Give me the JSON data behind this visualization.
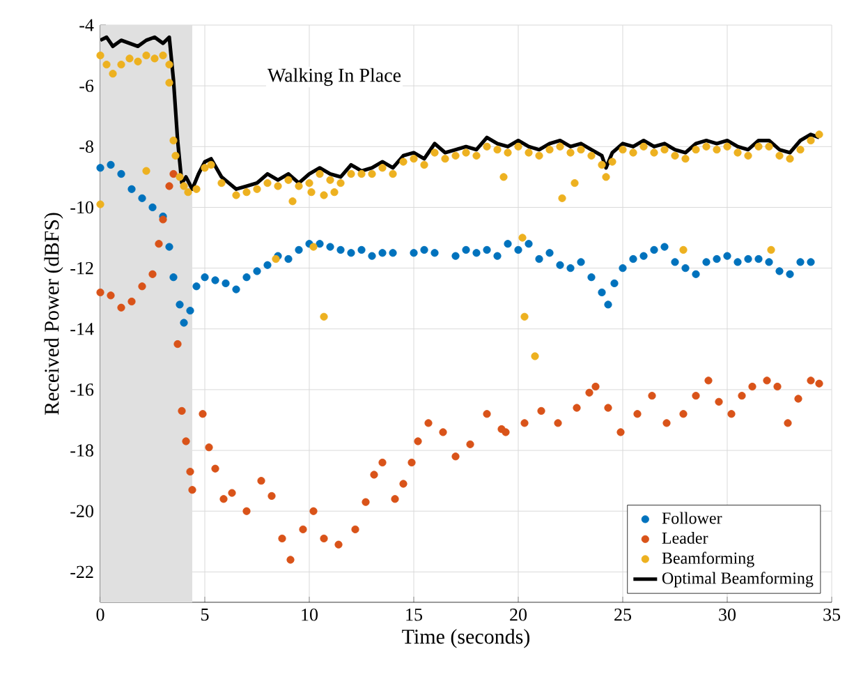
{
  "chart_data": {
    "type": "scatter",
    "xlabel": "Time (seconds)",
    "ylabel": "Received Power (dBFS)",
    "xlim": [
      0,
      35
    ],
    "ylim": [
      -23,
      -4
    ],
    "xticks": [
      0,
      5,
      10,
      15,
      20,
      25,
      30,
      35
    ],
    "yticks": [
      -22,
      -20,
      -18,
      -16,
      -14,
      -12,
      -10,
      -8,
      -6,
      -4
    ],
    "grid": true,
    "legend": "bottom right",
    "marker": "circle",
    "bands": [
      {
        "axis": "x",
        "from": 0,
        "to": 4.4,
        "color": "#e0e0e0"
      }
    ],
    "annotations": [
      "Walking In Place"
    ],
    "series": [
      {
        "name": "Follower",
        "color": "#0072bd",
        "x": [
          0,
          0.5,
          1,
          1.5,
          2,
          2.5,
          3,
          3.3,
          3.5,
          3.8,
          4.0,
          4.3,
          4.6,
          5,
          5.5,
          6,
          6.5,
          7,
          7.5,
          8,
          8.5,
          9,
          9.5,
          10,
          10.5,
          11,
          11.5,
          12,
          12.5,
          13,
          13.5,
          14,
          15,
          15.5,
          16,
          17,
          17.5,
          18,
          18.5,
          19,
          19.5,
          20,
          20.5,
          21,
          21.5,
          22,
          22.5,
          23,
          23.5,
          24,
          24.3,
          24.6,
          25,
          25.5,
          26,
          26.5,
          27,
          27.5,
          28,
          28.5,
          29,
          29.5,
          30,
          30.5,
          31,
          31.5,
          32,
          32.5,
          33,
          33.5,
          34
        ],
        "values": [
          -8.7,
          -8.6,
          -8.9,
          -9.4,
          -9.7,
          -10.0,
          -10.3,
          -11.3,
          -12.3,
          -13.2,
          -13.8,
          -13.4,
          -12.6,
          -12.3,
          -12.4,
          -12.5,
          -12.7,
          -12.3,
          -12.1,
          -11.9,
          -11.6,
          -11.7,
          -11.4,
          -11.2,
          -11.2,
          -11.3,
          -11.4,
          -11.5,
          -11.4,
          -11.6,
          -11.5,
          -11.5,
          -11.5,
          -11.4,
          -11.5,
          -11.6,
          -11.4,
          -11.5,
          -11.4,
          -11.6,
          -11.2,
          -11.4,
          -11.2,
          -11.7,
          -11.5,
          -11.9,
          -12.0,
          -11.8,
          -12.3,
          -12.8,
          -13.2,
          -12.5,
          -12.0,
          -11.7,
          -11.6,
          -11.4,
          -11.3,
          -11.8,
          -12.0,
          -12.2,
          -11.8,
          -11.7,
          -11.6,
          -11.8,
          -11.7,
          -11.7,
          -11.8,
          -12.1,
          -12.2,
          -11.8,
          -11.8
        ]
      },
      {
        "name": "Leader",
        "color": "#d95319",
        "x": [
          0,
          0.5,
          1,
          1.5,
          2,
          2.5,
          2.8,
          3,
          3.3,
          3.5,
          3.7,
          3.9,
          4.1,
          4.3,
          4.4,
          4.9,
          5.2,
          5.5,
          5.9,
          6.3,
          7.0,
          7.7,
          8.2,
          8.7,
          9.1,
          9.7,
          10.2,
          10.7,
          11.4,
          12.2,
          12.7,
          13.1,
          13.5,
          14.1,
          14.5,
          14.9,
          15.2,
          15.7,
          16.4,
          17.0,
          17.7,
          18.5,
          19.2,
          19.4,
          20.3,
          21.1,
          21.9,
          22.8,
          23.4,
          23.7,
          24.3,
          24.9,
          25.7,
          26.4,
          27.1,
          27.9,
          28.5,
          29.1,
          29.6,
          30.2,
          30.7,
          31.2,
          31.9,
          32.4,
          32.9,
          33.4,
          34.0,
          34.4
        ],
        "values": [
          -12.8,
          -12.9,
          -13.3,
          -13.1,
          -12.6,
          -12.2,
          -11.2,
          -10.4,
          -9.3,
          -8.9,
          -14.5,
          -16.7,
          -17.7,
          -18.7,
          -19.3,
          -16.8,
          -17.9,
          -18.6,
          -19.6,
          -19.4,
          -20.0,
          -19.0,
          -19.5,
          -20.9,
          -21.6,
          -20.6,
          -20.0,
          -20.9,
          -21.1,
          -20.6,
          -19.7,
          -18.8,
          -18.4,
          -19.6,
          -19.1,
          -18.4,
          -17.7,
          -17.1,
          -17.4,
          -18.2,
          -17.8,
          -16.8,
          -17.3,
          -17.4,
          -17.1,
          -16.7,
          -17.1,
          -16.6,
          -16.1,
          -15.9,
          -16.6,
          -17.4,
          -16.8,
          -16.2,
          -17.1,
          -16.8,
          -16.2,
          -15.7,
          -16.4,
          -16.8,
          -16.2,
          -15.9,
          -15.7,
          -15.9,
          -17.1,
          -16.3,
          -15.7,
          -15.8
        ]
      },
      {
        "name": "Beamforming",
        "color": "#edb120",
        "x": [
          0,
          0.3,
          0.6,
          1,
          1.4,
          1.8,
          2.2,
          2.6,
          3.0,
          3.3,
          3.6,
          3.8,
          4.0,
          4.2,
          4.6,
          5.0,
          5.3,
          5.8,
          6.5,
          7,
          7.5,
          8,
          8.5,
          9,
          9.5,
          10,
          10.5,
          11,
          11.5,
          12,
          12.5,
          13,
          13.5,
          14,
          14.5,
          15,
          15.5,
          16,
          16.5,
          17,
          17.5,
          18,
          18.5,
          19,
          19.5,
          20,
          20.5,
          21,
          21.5,
          22,
          22.5,
          23,
          23.5,
          24,
          24.2,
          24.5,
          25,
          25.5,
          26,
          26.5,
          27,
          27.5,
          28,
          28.5,
          29,
          29.5,
          30,
          30.5,
          31,
          31.5,
          32,
          32.5,
          33,
          33.5,
          34,
          34.4,
          0,
          2.2,
          3.3,
          3.5,
          8.4,
          9.2,
          10.1,
          10.2,
          10.7,
          10.7,
          11.2,
          19.3,
          20.2,
          20.3,
          20.8,
          22.1,
          22.7,
          27.9,
          32.1
        ],
        "values": [
          -5.0,
          -5.3,
          -5.6,
          -5.3,
          -5.1,
          -5.2,
          -5.0,
          -5.1,
          -5.0,
          -5.3,
          -8.3,
          -9.0,
          -9.3,
          -9.5,
          -9.4,
          -8.7,
          -8.6,
          -9.2,
          -9.6,
          -9.5,
          -9.4,
          -9.2,
          -9.3,
          -9.1,
          -9.3,
          -9.2,
          -8.9,
          -9.1,
          -9.2,
          -8.9,
          -8.9,
          -8.9,
          -8.7,
          -8.9,
          -8.5,
          -8.4,
          -8.6,
          -8.2,
          -8.4,
          -8.3,
          -8.2,
          -8.3,
          -8.0,
          -8.1,
          -8.2,
          -8.0,
          -8.2,
          -8.3,
          -8.1,
          -8.0,
          -8.2,
          -8.1,
          -8.3,
          -8.6,
          -9.0,
          -8.5,
          -8.1,
          -8.2,
          -8.0,
          -8.2,
          -8.1,
          -8.3,
          -8.4,
          -8.1,
          -8.0,
          -8.1,
          -8.0,
          -8.2,
          -8.3,
          -8.0,
          -8.0,
          -8.3,
          -8.4,
          -8.1,
          -7.8,
          -7.6,
          -9.9,
          -8.8,
          -5.9,
          -7.8,
          -11.7,
          -9.8,
          -9.5,
          -11.3,
          -9.6,
          -13.6,
          -9.5,
          -9.0,
          -11.0,
          -13.6,
          -14.9,
          -9.7,
          -9.2,
          -11.4,
          -11.4
        ]
      },
      {
        "name": "Optimal Beamforming",
        "type": "line",
        "marker": "none",
        "color": "#000000",
        "x": [
          0,
          0.3,
          0.6,
          1,
          1.4,
          1.8,
          2.2,
          2.6,
          3.0,
          3.3,
          3.5,
          3.7,
          3.9,
          4.1,
          4.4,
          4.7,
          5.0,
          5.3,
          5.8,
          6.5,
          7,
          7.5,
          8,
          8.5,
          9,
          9.5,
          10,
          10.5,
          11,
          11.5,
          12,
          12.5,
          13,
          13.5,
          14,
          14.5,
          15,
          15.5,
          16,
          16.5,
          17,
          17.5,
          18,
          18.5,
          19,
          19.5,
          20,
          20.5,
          21,
          21.5,
          22,
          22.5,
          23,
          23.5,
          24,
          24.2,
          24.5,
          25,
          25.5,
          26,
          26.5,
          27,
          27.5,
          28,
          28.5,
          29,
          29.5,
          30,
          30.5,
          31,
          31.5,
          32,
          32.5,
          33,
          33.5,
          34,
          34.4
        ],
        "values": [
          -4.5,
          -4.4,
          -4.7,
          -4.5,
          -4.6,
          -4.7,
          -4.5,
          -4.4,
          -4.6,
          -4.4,
          -5.8,
          -7.8,
          -9.2,
          -9.0,
          -9.4,
          -8.9,
          -8.5,
          -8.4,
          -9.0,
          -9.4,
          -9.3,
          -9.2,
          -8.9,
          -9.1,
          -8.9,
          -9.2,
          -8.9,
          -8.7,
          -8.9,
          -9.0,
          -8.6,
          -8.8,
          -8.7,
          -8.5,
          -8.7,
          -8.3,
          -8.2,
          -8.4,
          -7.9,
          -8.2,
          -8.1,
          -8.0,
          -8.1,
          -7.7,
          -7.9,
          -8.0,
          -7.8,
          -8.0,
          -8.1,
          -7.9,
          -7.8,
          -8.0,
          -7.9,
          -8.1,
          -8.3,
          -8.7,
          -8.2,
          -7.9,
          -8.0,
          -7.8,
          -8.0,
          -7.9,
          -8.1,
          -8.2,
          -7.9,
          -7.8,
          -7.9,
          -7.8,
          -8.0,
          -8.1,
          -7.8,
          -7.8,
          -8.1,
          -8.2,
          -7.8,
          -7.6,
          -7.7
        ]
      }
    ]
  }
}
